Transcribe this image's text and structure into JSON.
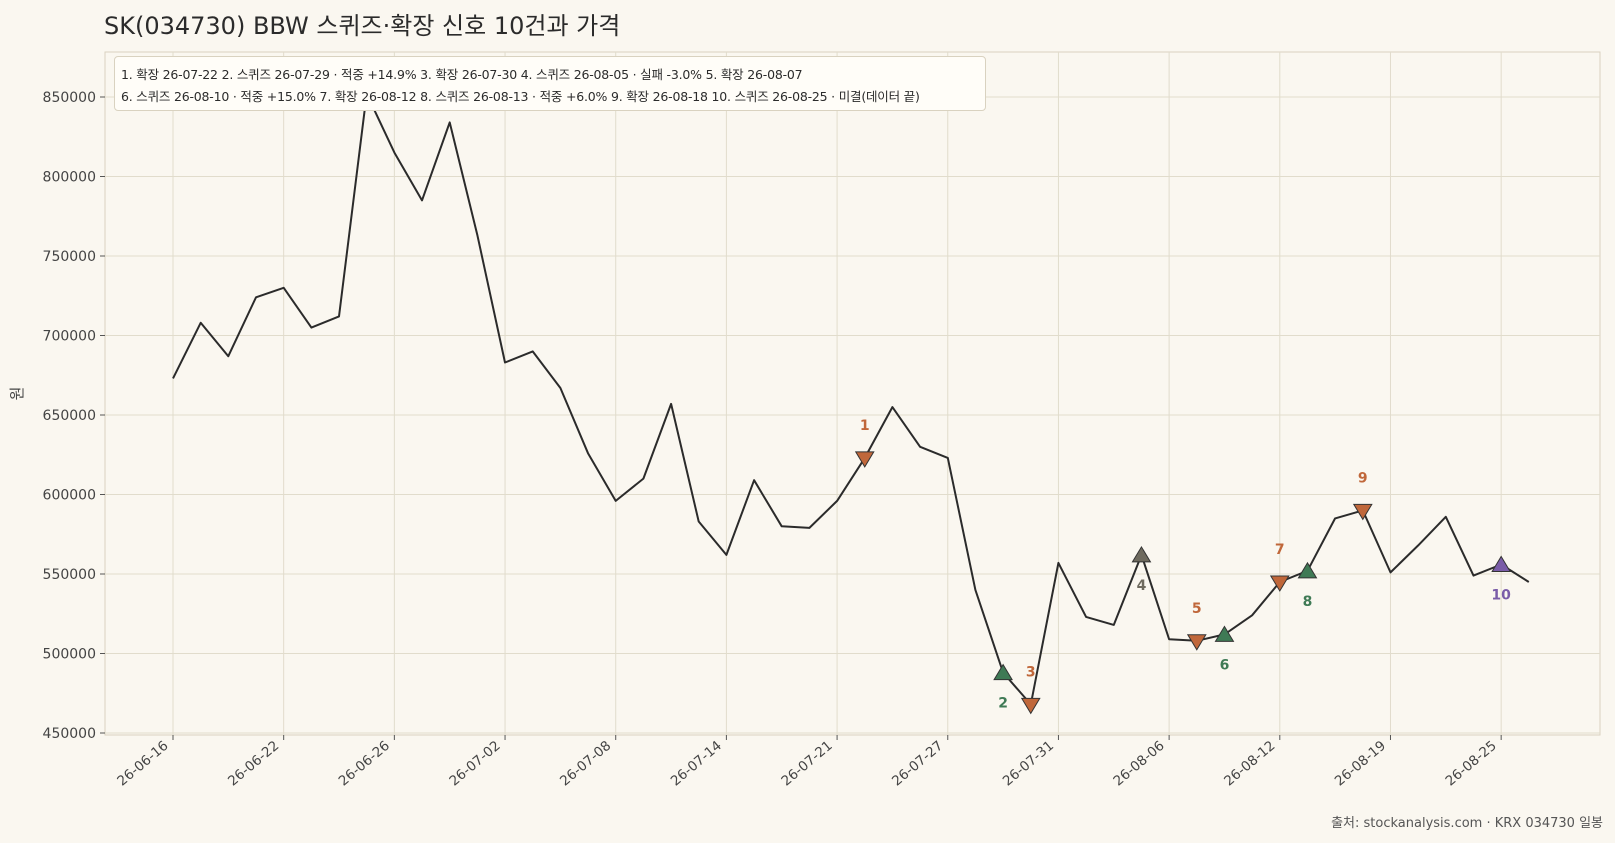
{
  "chart_data": {
    "type": "line",
    "title": "SK(034730) BBW 스퀴즈·확장 신호 10건과 가격",
    "ylabel": "원",
    "xlabel": "",
    "ylim": [
      450000,
      875000
    ],
    "yticks": [
      450000,
      500000,
      550000,
      600000,
      650000,
      700000,
      750000,
      800000,
      850000
    ],
    "x_tick_labels": [
      "26-06-16",
      "26-06-22",
      "26-06-26",
      "26-07-02",
      "26-07-08",
      "26-07-14",
      "26-07-21",
      "26-07-27",
      "26-07-31",
      "26-08-06",
      "26-08-12",
      "26-08-19",
      "26-08-25"
    ],
    "x_tick_index": [
      0,
      4,
      8,
      12,
      16,
      20,
      24,
      28,
      32,
      36,
      40,
      44,
      48
    ],
    "grid": true,
    "series": [
      {
        "color": "#2b2b2b",
        "values": [
          673000,
          708000,
          687000,
          724000,
          730000,
          705000,
          712000,
          852000,
          815000,
          785000,
          834000,
          763000,
          683000,
          690000,
          667000,
          626000,
          596000,
          610000,
          657000,
          583000,
          562000,
          609000,
          580000,
          579000,
          596000,
          623000,
          655000,
          630000,
          623000,
          540000,
          488000,
          468000,
          557000,
          523000,
          518000,
          562000,
          509000,
          508000,
          512000,
          524000,
          545000,
          552000,
          585000,
          590000,
          551000,
          568000,
          586000,
          549000,
          556000,
          545000
        ]
      }
    ],
    "signals": [
      {
        "label": "1",
        "index": 25,
        "value": 623000,
        "kind": "expand"
      },
      {
        "label": "2",
        "index": 30,
        "value": 488000,
        "kind": "squeeze-hit"
      },
      {
        "label": "3",
        "index": 31,
        "value": 468000,
        "kind": "expand"
      },
      {
        "label": "4",
        "index": 35,
        "value": 562000,
        "kind": "squeeze-fail"
      },
      {
        "label": "5",
        "index": 37,
        "value": 508000,
        "kind": "expand"
      },
      {
        "label": "6",
        "index": 38,
        "value": 512000,
        "kind": "squeeze-hit"
      },
      {
        "label": "7",
        "index": 40,
        "value": 545000,
        "kind": "expand"
      },
      {
        "label": "8",
        "index": 41,
        "value": 552000,
        "kind": "squeeze-hit"
      },
      {
        "label": "9",
        "index": 43,
        "value": 590000,
        "kind": "expand"
      },
      {
        "label": "10",
        "index": 48,
        "value": 556000,
        "kind": "squeeze-open"
      }
    ],
    "signal_colors": {
      "expand": "#c0673a",
      "squeeze-hit": "#3f7a55",
      "squeeze-fail": "#6e6a5e",
      "squeeze-open": "#7a5ca8"
    },
    "legend": {
      "placement": "top-left",
      "line1": "1. 확장 26-07-22  2. 스퀴즈 26-07-29 · 적중 +14.9%  3. 확장 26-07-30  4. 스퀴즈 26-08-05 · 실패 -3.0%  5. 확장 26-08-07",
      "line2": "6. 스퀴즈 26-08-10 · 적중 +15.0%  7. 확장 26-08-12  8. 스퀴즈 26-08-13 · 적중 +6.0%  9. 확장 26-08-18  10. 스퀴즈 26-08-25 · 미결(데이터 끝)"
    },
    "source": "출처: stockanalysis.com · KRX 034730 일봉"
  }
}
